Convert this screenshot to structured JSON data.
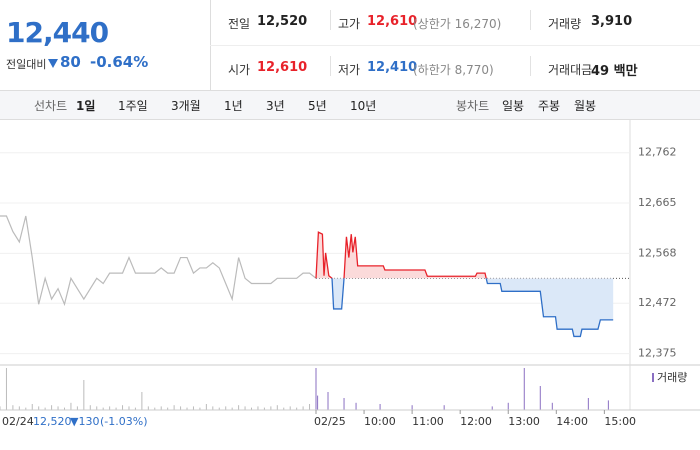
{
  "header": {
    "price": "12,440",
    "change_label": "전일대비",
    "change": "80",
    "change_pct": "-0.64%"
  },
  "stats": [
    {
      "label": "전일",
      "value": "12,520"
    },
    {
      "label": "고가",
      "value": "12,610",
      "note": "(상한가 16,270)"
    },
    {
      "label": "거래량",
      "value": "3,910"
    },
    {
      "label": "시가",
      "value": "12,610"
    },
    {
      "label": "저가",
      "value": "12,410",
      "note": "(하한가 8,770)"
    },
    {
      "label": "거래대금",
      "value": "49 백만"
    }
  ],
  "nav": {
    "line_label": "선차트",
    "line_tabs": [
      "1일",
      "1주일",
      "3개월",
      "1년",
      "3년",
      "5년",
      "10년"
    ],
    "candle_label": "봉차트",
    "candle_tabs": [
      "일봉",
      "주봉",
      "월봉"
    ]
  },
  "chart_data": {
    "type": "line",
    "ylim": [
      12353,
      12825
    ],
    "yticks": [
      {
        "value": 12762,
        "label": "12,762"
      },
      {
        "value": 12665,
        "label": "12,665"
      },
      {
        "value": 12568,
        "label": "12,568"
      },
      {
        "value": 12472,
        "label": "12,472"
      },
      {
        "value": 12375,
        "label": "12,375"
      }
    ],
    "xlim": [
      0,
      392
    ],
    "xticks": [
      {
        "value": 0,
        "label": "02/25"
      },
      {
        "value": 60,
        "label": "10:00"
      },
      {
        "value": 120,
        "label": "11:00"
      },
      {
        "value": 180,
        "label": "12:00"
      },
      {
        "value": 240,
        "label": "13:00"
      },
      {
        "value": 300,
        "label": "14:00"
      },
      {
        "value": 360,
        "label": "15:00"
      }
    ],
    "reference": 12520,
    "series": [
      {
        "name": "02/24",
        "color": "#bbbbbb",
        "values": [
          12640,
          12640,
          12610,
          12590,
          12640,
          12560,
          12470,
          12520,
          12480,
          12500,
          12470,
          12520,
          12500,
          12480,
          12500,
          12520,
          12510,
          12530,
          12530,
          12530,
          12560,
          12530,
          12530,
          12530,
          12530,
          12540,
          12530,
          12530,
          12560,
          12560,
          12530,
          12540,
          12540,
          12550,
          12540,
          12510,
          12480,
          12560,
          12520,
          12510,
          12510,
          12510,
          12510,
          12520,
          12520,
          12520,
          12520,
          12530,
          12530,
          12520
        ],
        "close": "12,520",
        "change": "▼130",
        "change_pct": "(-1.03%)"
      },
      {
        "name": "today",
        "up_color": "#e8222a",
        "down_color": "#2f6fc7",
        "x": [
          0,
          3,
          8,
          10,
          12,
          16,
          20,
          22,
          32,
          35,
          38,
          41,
          44,
          46,
          49,
          52,
          84,
          86,
          136,
          139,
          199,
          201,
          211,
          214,
          230,
          232,
          280,
          284,
          299,
          301,
          320,
          322,
          330,
          332,
          352,
          355,
          371
        ],
        "values": [
          12520,
          12609,
          12605,
          12525,
          12569,
          12525,
          12520,
          12461,
          12461,
          12520,
          12600,
          12560,
          12605,
          12570,
          12600,
          12544,
          12544,
          12536,
          12536,
          12524,
          12524,
          12530,
          12530,
          12510,
          12510,
          12495,
          12495,
          12446,
          12446,
          12422,
          12422,
          12408,
          12408,
          12422,
          12422,
          12440,
          12440
        ]
      }
    ],
    "volume": {
      "label": "거래량",
      "color": "#8a6fc2",
      "prev_values": [
        3,
        35,
        4,
        3,
        2,
        5,
        3,
        2,
        4,
        3,
        2,
        6,
        3,
        25,
        4,
        3,
        2,
        3,
        2,
        4,
        3,
        2,
        15,
        3,
        2,
        3,
        2,
        4,
        3,
        2,
        3,
        2,
        5,
        3,
        2,
        3,
        2,
        4,
        3,
        2,
        3,
        2,
        3,
        4,
        2,
        3,
        2,
        3,
        5,
        3
      ],
      "x": [
        0,
        2,
        15,
        35,
        50,
        80,
        120,
        160,
        220,
        240,
        260,
        280,
        295,
        340,
        365
      ],
      "values": [
        35,
        12,
        15,
        10,
        6,
        5,
        4,
        4,
        3,
        6,
        35,
        20,
        6,
        10,
        8
      ]
    }
  }
}
